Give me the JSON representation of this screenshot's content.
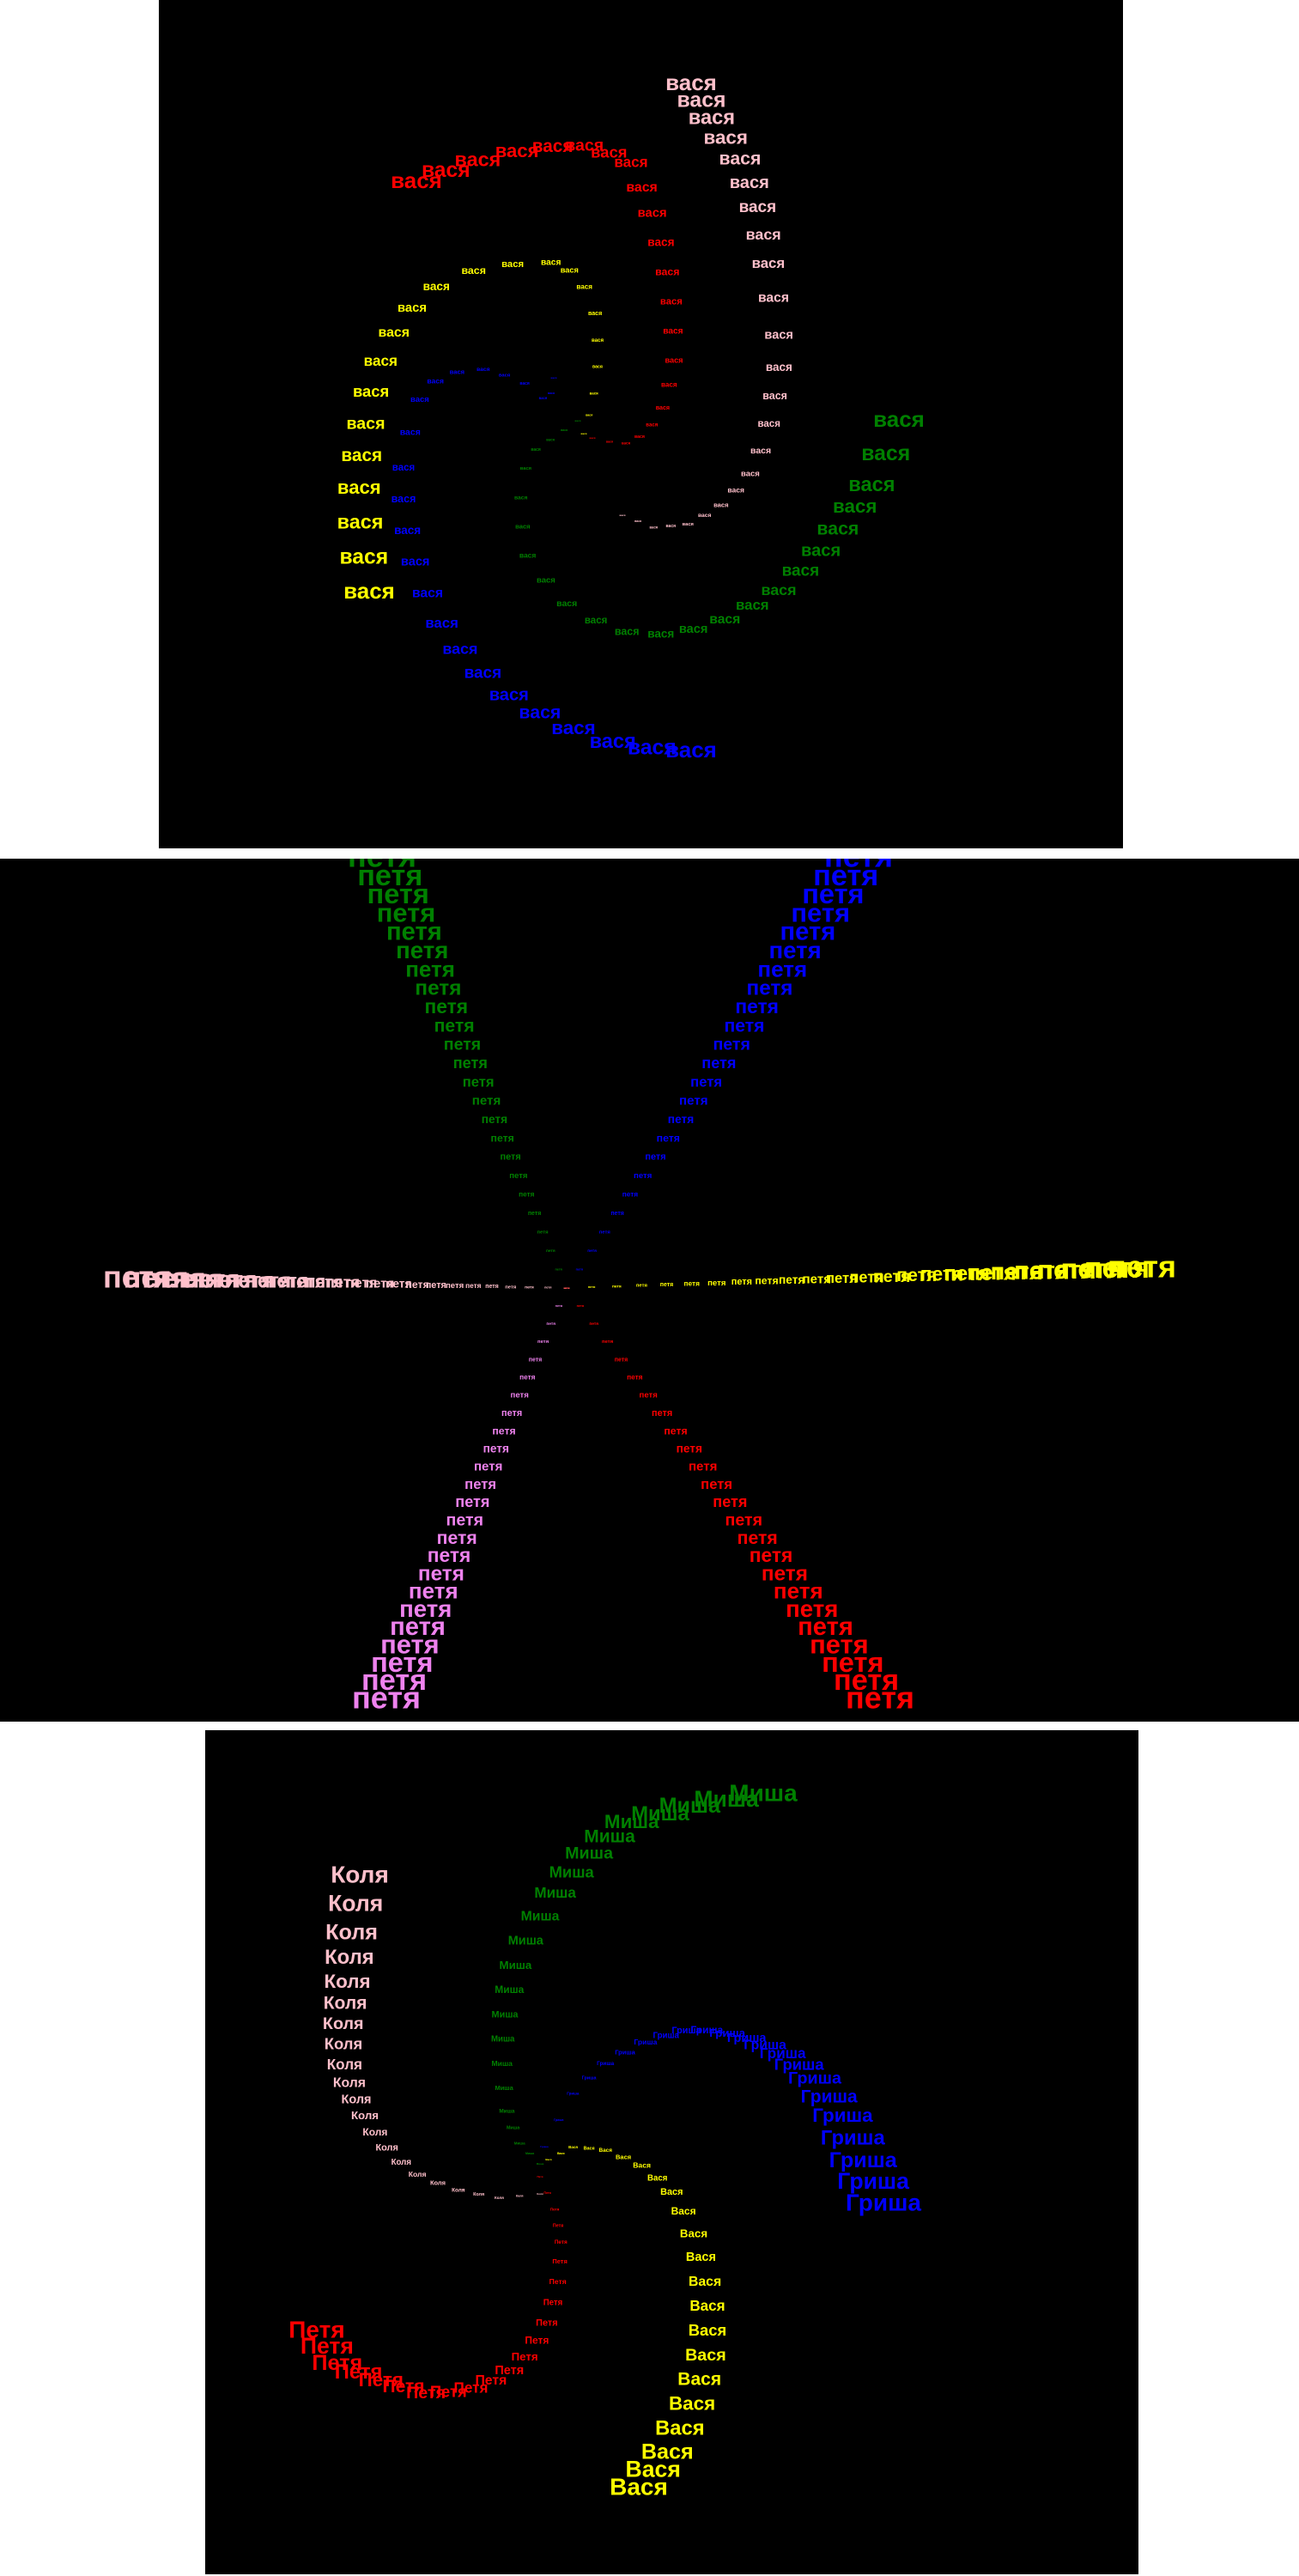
{
  "panels": [
    {
      "words": [
        {
          "text": "вася",
          "color": "#ffc0cb"
        },
        {
          "text": "вася",
          "color": "#ff0000"
        },
        {
          "text": "вася",
          "color": "#ffff00"
        },
        {
          "text": "вася",
          "color": "#0000ff"
        },
        {
          "text": "вася",
          "color": "#008000"
        }
      ]
    },
    {
      "words": [
        {
          "text": "петя",
          "color": "#008000"
        },
        {
          "text": "петя",
          "color": "#0000ff"
        },
        {
          "text": "петя",
          "color": "#ffc0cb"
        },
        {
          "text": "петя",
          "color": "#ffff00"
        },
        {
          "text": "петя",
          "color": "#ee82ee"
        },
        {
          "text": "петя",
          "color": "#ff0000"
        }
      ]
    },
    {
      "words": [
        {
          "text": "Коля",
          "color": "#ffc0cb"
        },
        {
          "text": "Миша",
          "color": "#008000"
        },
        {
          "text": "Гриша",
          "color": "#0000ff"
        },
        {
          "text": "Вася",
          "color": "#ffff00"
        },
        {
          "text": "Петя",
          "color": "#ff0000"
        }
      ]
    }
  ]
}
